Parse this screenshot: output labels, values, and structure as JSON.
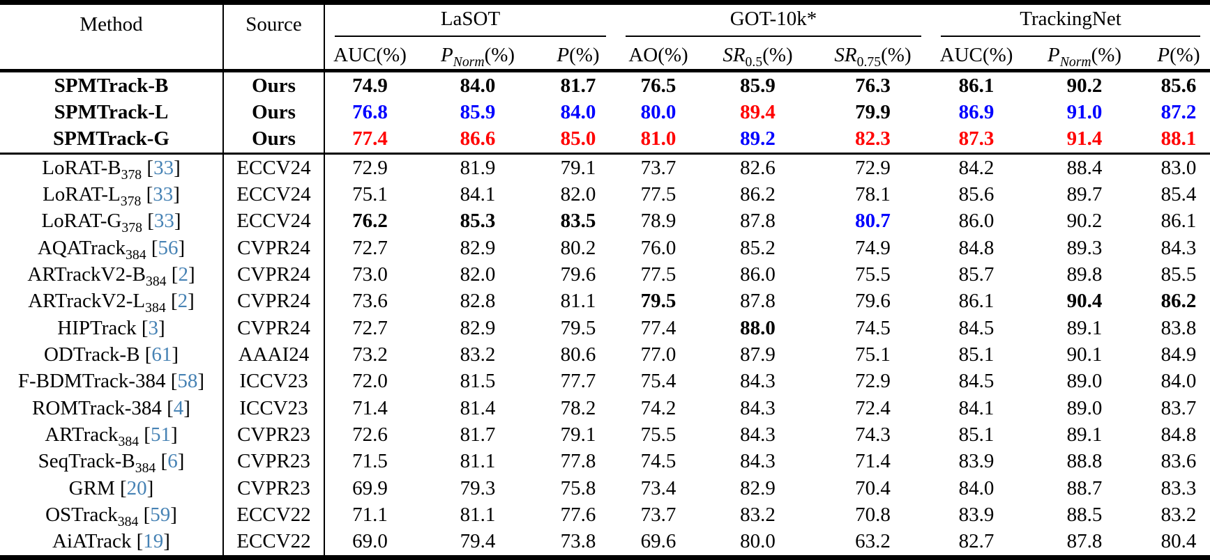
{
  "colors": {
    "best": "#FF0000",
    "second": "#0000FF",
    "citation": "#4682B4"
  },
  "header": {
    "method": "Method",
    "source": "Source",
    "groups": [
      {
        "key": "lasot",
        "label": "LaSOT"
      },
      {
        "key": "got10k",
        "label": "GOT-10k*"
      },
      {
        "key": "trackingnet",
        "label": "TrackingNet"
      }
    ],
    "subcolumns": [
      {
        "key": "lasot-auc",
        "pre": "AUC",
        "italic": false,
        "sub": "",
        "subItalic": false,
        "suffix": "(%)"
      },
      {
        "key": "lasot-pnorm",
        "pre": "P",
        "italic": true,
        "sub": "Norm",
        "subItalic": true,
        "suffix": "(%)"
      },
      {
        "key": "lasot-p",
        "pre": "P",
        "italic": true,
        "sub": "",
        "subItalic": false,
        "suffix": "(%)"
      },
      {
        "key": "got-ao",
        "pre": "AO",
        "italic": false,
        "sub": "",
        "subItalic": false,
        "suffix": "(%)"
      },
      {
        "key": "got-sr05",
        "pre": "SR",
        "italic": true,
        "sub": "0.5",
        "subItalic": false,
        "suffix": "(%)"
      },
      {
        "key": "got-sr075",
        "pre": "SR",
        "italic": true,
        "sub": "0.75",
        "subItalic": false,
        "suffix": "(%)"
      },
      {
        "key": "tn-auc",
        "pre": "AUC",
        "italic": false,
        "sub": "",
        "subItalic": false,
        "suffix": "(%)"
      },
      {
        "key": "tn-pnorm",
        "pre": "P",
        "italic": true,
        "sub": "Norm",
        "subItalic": true,
        "suffix": "(%)"
      },
      {
        "key": "tn-p",
        "pre": "P",
        "italic": true,
        "sub": "",
        "subItalic": false,
        "suffix": "(%)"
      }
    ]
  },
  "style_legend": {
    "p": "plain",
    "b": "bold-third-best",
    "r": "red-best",
    "u": "blue-second-best"
  },
  "rows": [
    {
      "method": "SPMTrack-B",
      "msub": "",
      "cite": "",
      "source": "Ours",
      "ours": true,
      "values": [
        "74.9",
        "84.0",
        "81.7",
        "76.5",
        "85.9",
        "76.3",
        "86.1",
        "90.2",
        "85.6"
      ],
      "styles": [
        "p",
        "p",
        "p",
        "p",
        "p",
        "p",
        "b",
        "p",
        "p"
      ]
    },
    {
      "method": "SPMTrack-L",
      "msub": "",
      "cite": "",
      "source": "Ours",
      "ours": true,
      "values": [
        "76.8",
        "85.9",
        "84.0",
        "80.0",
        "89.4",
        "79.9",
        "86.9",
        "91.0",
        "87.2"
      ],
      "styles": [
        "u",
        "u",
        "u",
        "u",
        "r",
        "b",
        "u",
        "u",
        "u"
      ]
    },
    {
      "method": "SPMTrack-G",
      "msub": "",
      "cite": "",
      "source": "Ours",
      "ours": true,
      "values": [
        "77.4",
        "86.6",
        "85.0",
        "81.0",
        "89.2",
        "82.3",
        "87.3",
        "91.4",
        "88.1"
      ],
      "styles": [
        "r",
        "r",
        "r",
        "r",
        "u",
        "r",
        "r",
        "r",
        "r"
      ]
    },
    {
      "method": "LoRAT-B",
      "msub": "378",
      "cite": "33",
      "source": "ECCV24",
      "ours": false,
      "values": [
        "72.9",
        "81.9",
        "79.1",
        "73.7",
        "82.6",
        "72.9",
        "84.2",
        "88.4",
        "83.0"
      ],
      "styles": [
        "p",
        "p",
        "p",
        "p",
        "p",
        "p",
        "p",
        "p",
        "p"
      ]
    },
    {
      "method": "LoRAT-L",
      "msub": "378",
      "cite": "33",
      "source": "ECCV24",
      "ours": false,
      "values": [
        "75.1",
        "84.1",
        "82.0",
        "77.5",
        "86.2",
        "78.1",
        "85.6",
        "89.7",
        "85.4"
      ],
      "styles": [
        "p",
        "p",
        "p",
        "p",
        "p",
        "p",
        "p",
        "p",
        "p"
      ]
    },
    {
      "method": "LoRAT-G",
      "msub": "378",
      "cite": "33",
      "source": "ECCV24",
      "ours": false,
      "values": [
        "76.2",
        "85.3",
        "83.5",
        "78.9",
        "87.8",
        "80.7",
        "86.0",
        "90.2",
        "86.1"
      ],
      "styles": [
        "b",
        "b",
        "b",
        "p",
        "p",
        "u",
        "p",
        "p",
        "p"
      ]
    },
    {
      "method": "AQATrack",
      "msub": "384",
      "cite": "56",
      "source": "CVPR24",
      "ours": false,
      "values": [
        "72.7",
        "82.9",
        "80.2",
        "76.0",
        "85.2",
        "74.9",
        "84.8",
        "89.3",
        "84.3"
      ],
      "styles": [
        "p",
        "p",
        "p",
        "p",
        "p",
        "p",
        "p",
        "p",
        "p"
      ]
    },
    {
      "method": "ARTrackV2-B",
      "msub": "384",
      "cite": "2",
      "source": "CVPR24",
      "ours": false,
      "values": [
        "73.0",
        "82.0",
        "79.6",
        "77.5",
        "86.0",
        "75.5",
        "85.7",
        "89.8",
        "85.5"
      ],
      "styles": [
        "p",
        "p",
        "p",
        "p",
        "p",
        "p",
        "p",
        "p",
        "p"
      ]
    },
    {
      "method": "ARTrackV2-L",
      "msub": "384",
      "cite": "2",
      "source": "CVPR24",
      "ours": false,
      "values": [
        "73.6",
        "82.8",
        "81.1",
        "79.5",
        "87.8",
        "79.6",
        "86.1",
        "90.4",
        "86.2"
      ],
      "styles": [
        "p",
        "p",
        "p",
        "b",
        "p",
        "p",
        "p",
        "b",
        "b"
      ]
    },
    {
      "method": "HIPTrack",
      "msub": "",
      "cite": "3",
      "source": "CVPR24",
      "ours": false,
      "values": [
        "72.7",
        "82.9",
        "79.5",
        "77.4",
        "88.0",
        "74.5",
        "84.5",
        "89.1",
        "83.8"
      ],
      "styles": [
        "p",
        "p",
        "p",
        "p",
        "b",
        "p",
        "p",
        "p",
        "p"
      ]
    },
    {
      "method": "ODTrack-B",
      "msub": "",
      "cite": "61",
      "source": "AAAI24",
      "ours": false,
      "values": [
        "73.2",
        "83.2",
        "80.6",
        "77.0",
        "87.9",
        "75.1",
        "85.1",
        "90.1",
        "84.9"
      ],
      "styles": [
        "p",
        "p",
        "p",
        "p",
        "p",
        "p",
        "p",
        "p",
        "p"
      ]
    },
    {
      "method": "F-BDMTrack-384",
      "msub": "",
      "cite": "58",
      "source": "ICCV23",
      "ours": false,
      "values": [
        "72.0",
        "81.5",
        "77.7",
        "75.4",
        "84.3",
        "72.9",
        "84.5",
        "89.0",
        "84.0"
      ],
      "styles": [
        "p",
        "p",
        "p",
        "p",
        "p",
        "p",
        "p",
        "p",
        "p"
      ]
    },
    {
      "method": "ROMTrack-384",
      "msub": "",
      "cite": "4",
      "source": "ICCV23",
      "ours": false,
      "values": [
        "71.4",
        "81.4",
        "78.2",
        "74.2",
        "84.3",
        "72.4",
        "84.1",
        "89.0",
        "83.7"
      ],
      "styles": [
        "p",
        "p",
        "p",
        "p",
        "p",
        "p",
        "p",
        "p",
        "p"
      ]
    },
    {
      "method": "ARTrack",
      "msub": "384",
      "cite": "51",
      "source": "CVPR23",
      "ours": false,
      "values": [
        "72.6",
        "81.7",
        "79.1",
        "75.5",
        "84.3",
        "74.3",
        "85.1",
        "89.1",
        "84.8"
      ],
      "styles": [
        "p",
        "p",
        "p",
        "p",
        "p",
        "p",
        "p",
        "p",
        "p"
      ]
    },
    {
      "method": "SeqTrack-B",
      "msub": "384",
      "cite": "6",
      "source": "CVPR23",
      "ours": false,
      "values": [
        "71.5",
        "81.1",
        "77.8",
        "74.5",
        "84.3",
        "71.4",
        "83.9",
        "88.8",
        "83.6"
      ],
      "styles": [
        "p",
        "p",
        "p",
        "p",
        "p",
        "p",
        "p",
        "p",
        "p"
      ]
    },
    {
      "method": "GRM",
      "msub": "",
      "cite": "20",
      "source": "CVPR23",
      "ours": false,
      "values": [
        "69.9",
        "79.3",
        "75.8",
        "73.4",
        "82.9",
        "70.4",
        "84.0",
        "88.7",
        "83.3"
      ],
      "styles": [
        "p",
        "p",
        "p",
        "p",
        "p",
        "p",
        "p",
        "p",
        "p"
      ]
    },
    {
      "method": "OSTrack",
      "msub": "384",
      "cite": "59",
      "source": "ECCV22",
      "ours": false,
      "values": [
        "71.1",
        "81.1",
        "77.6",
        "73.7",
        "83.2",
        "70.8",
        "83.9",
        "88.5",
        "83.2"
      ],
      "styles": [
        "p",
        "p",
        "p",
        "p",
        "p",
        "p",
        "p",
        "p",
        "p"
      ]
    },
    {
      "method": "AiATrack",
      "msub": "",
      "cite": "19",
      "source": "ECCV22",
      "ours": false,
      "values": [
        "69.0",
        "79.4",
        "73.8",
        "69.6",
        "80.0",
        "63.2",
        "82.7",
        "87.8",
        "80.4"
      ],
      "styles": [
        "p",
        "p",
        "p",
        "p",
        "p",
        "p",
        "p",
        "p",
        "p"
      ]
    }
  ]
}
